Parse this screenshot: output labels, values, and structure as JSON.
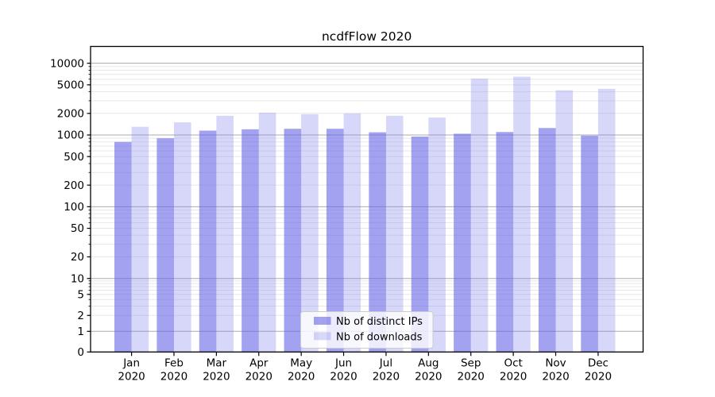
{
  "title": "ncdfFlow 2020",
  "chart_data": {
    "type": "bar",
    "categories": [
      "Jan 2020",
      "Feb 2020",
      "Mar 2020",
      "Apr 2020",
      "May 2020",
      "Jun 2020",
      "Jul 2020",
      "Aug 2020",
      "Sep 2020",
      "Oct 2020",
      "Nov 2020",
      "Dec 2020"
    ],
    "series": [
      {
        "name": "Nb of distinct IPs",
        "key": "distinct-ips",
        "values": [
          800,
          900,
          1150,
          1200,
          1220,
          1220,
          1090,
          950,
          1040,
          1100,
          1250,
          980
        ],
        "color": "rgba(100,100,230,0.60)"
      },
      {
        "name": "Nb of downloads",
        "key": "downloads",
        "values": [
          1300,
          1500,
          1850,
          2050,
          1950,
          2000,
          1850,
          1750,
          6100,
          6500,
          4200,
          4400
        ],
        "color": "rgba(130,130,235,0.32)"
      }
    ],
    "yscale": "symlog",
    "yticks": [
      0,
      1,
      2,
      5,
      10,
      20,
      50,
      100,
      200,
      500,
      1000,
      2000,
      5000,
      10000
    ],
    "ylim": [
      0,
      16700
    ],
    "grid": "on",
    "legend_position": "lower center",
    "colors": {
      "major_grid": "#ababab",
      "minor_grid": "#e7e7e7",
      "axis": "#000000",
      "legend_border": "#cccccc",
      "legend_bg": "rgba(255,255,255,0.8)"
    }
  }
}
